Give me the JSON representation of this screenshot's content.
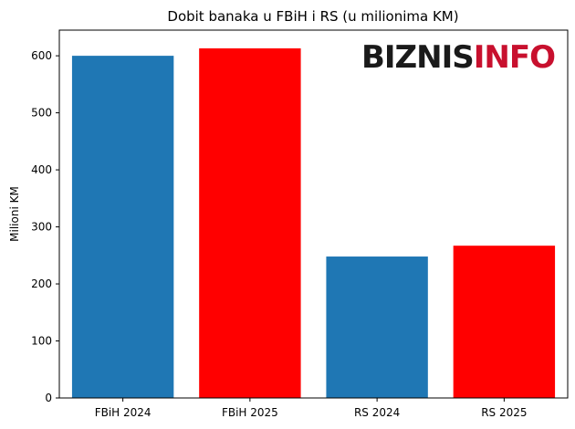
{
  "chart_data": {
    "type": "bar",
    "title": "Dobit banaka u FBiH i RS (u milionima KM)",
    "xlabel": "",
    "ylabel": "Milioni KM",
    "categories": [
      "FBiH 2024",
      "FBiH 2025",
      "RS 2024",
      "RS 2025"
    ],
    "values": [
      600,
      613,
      248,
      267
    ],
    "bar_colors": [
      "#1f77b4",
      "#ff0000",
      "#1f77b4",
      "#ff0000"
    ],
    "ylim": [
      0,
      645
    ],
    "yticks": [
      0,
      100,
      200,
      300,
      400,
      500,
      600
    ],
    "grid": false,
    "legend": "none"
  },
  "watermark": {
    "part1": "BIZNIS",
    "part2": "INFO",
    "color1": "#1a1a1a",
    "color2": "#c8102e"
  }
}
